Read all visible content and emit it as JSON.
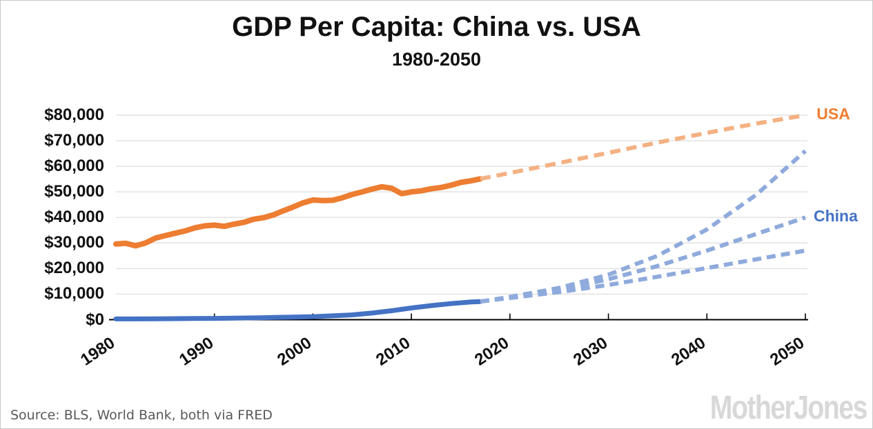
{
  "header": {},
  "footer": {
    "source": "Source: BLS, World Bank, both via FRED",
    "logo": "MotherJones"
  },
  "colors": {
    "usa_solid": "#ED7D31",
    "usa_dashed": "#F4B183",
    "china_solid": "#4472C4",
    "china_dashed": "#8FAADC",
    "gridline": "#E2E2E2",
    "axis": "#000000",
    "source_text": "#57585a",
    "logo_gray": "#d8d8d8"
  },
  "chart_data": {
    "type": "line",
    "title": "GDP Per Capita: China vs. USA",
    "subtitle": "1980-2050",
    "xlabel": "",
    "ylabel": "",
    "grid": "horizontal",
    "legend_position": "end-of-line labels",
    "x_axis": {
      "range": [
        1980,
        2050
      ],
      "ticks": [
        {
          "year": 1980,
          "label": "1980",
          "tick": false
        },
        {
          "year": 1990,
          "label": "1990",
          "tick": true
        },
        {
          "year": 2000,
          "label": "2000",
          "tick": true
        },
        {
          "year": 2010,
          "label": "2010",
          "tick": true
        },
        {
          "year": 2020,
          "label": "2020",
          "tick": true
        },
        {
          "year": 2030,
          "label": "2030",
          "tick": true
        },
        {
          "year": 2040,
          "label": "2040",
          "tick": true
        },
        {
          "year": 2050,
          "label": "2050",
          "tick": true
        }
      ]
    },
    "y_axis": {
      "range": [
        0,
        80000
      ],
      "ticks": [
        0,
        10000,
        20000,
        30000,
        40000,
        50000,
        60000,
        70000,
        80000
      ],
      "labels": [
        "$0",
        "$10,000",
        "$20,000",
        "$30,000",
        "$40,000",
        "$50,000",
        "$60,000",
        "$70,000",
        "$80,000"
      ]
    },
    "series": [
      {
        "name": "USA actual",
        "style": "solid",
        "color": "#ED7D31",
        "width": 8,
        "points": [
          [
            1980,
            29600
          ],
          [
            1981,
            29900
          ],
          [
            1982,
            28900
          ],
          [
            1983,
            30000
          ],
          [
            1984,
            31900
          ],
          [
            1985,
            32900
          ],
          [
            1986,
            33800
          ],
          [
            1987,
            34700
          ],
          [
            1988,
            35900
          ],
          [
            1989,
            36700
          ],
          [
            1990,
            37000
          ],
          [
            1991,
            36500
          ],
          [
            1992,
            37400
          ],
          [
            1993,
            38100
          ],
          [
            1994,
            39300
          ],
          [
            1995,
            39900
          ],
          [
            1996,
            41000
          ],
          [
            1997,
            42600
          ],
          [
            1998,
            44100
          ],
          [
            1999,
            45700
          ],
          [
            2000,
            46800
          ],
          [
            2001,
            46600
          ],
          [
            2002,
            46700
          ],
          [
            2003,
            47700
          ],
          [
            2004,
            49000
          ],
          [
            2005,
            50000
          ],
          [
            2006,
            51100
          ],
          [
            2007,
            52000
          ],
          [
            2008,
            51400
          ],
          [
            2009,
            49300
          ],
          [
            2010,
            50000
          ],
          [
            2011,
            50400
          ],
          [
            2012,
            51200
          ],
          [
            2013,
            51700
          ],
          [
            2014,
            52600
          ],
          [
            2015,
            53700
          ],
          [
            2016,
            54300
          ],
          [
            2017,
            55100
          ]
        ]
      },
      {
        "name": "USA projected",
        "style": "dashed",
        "color": "#F4B183",
        "width": 6,
        "dash": "15 9",
        "points": [
          [
            2017,
            55100
          ],
          [
            2020,
            57400
          ],
          [
            2025,
            61300
          ],
          [
            2030,
            65300
          ],
          [
            2035,
            69300
          ],
          [
            2040,
            73100
          ],
          [
            2045,
            76700
          ],
          [
            2050,
            80000
          ]
        ]
      },
      {
        "name": "China actual",
        "style": "solid",
        "color": "#4472C4",
        "width": 7,
        "points": [
          [
            1980,
            300
          ],
          [
            1982,
            300
          ],
          [
            1984,
            350
          ],
          [
            1986,
            400
          ],
          [
            1988,
            450
          ],
          [
            1990,
            500
          ],
          [
            1992,
            600
          ],
          [
            1994,
            700
          ],
          [
            1996,
            850
          ],
          [
            1998,
            1000
          ],
          [
            2000,
            1200
          ],
          [
            2002,
            1500
          ],
          [
            2004,
            1900
          ],
          [
            2006,
            2600
          ],
          [
            2008,
            3500
          ],
          [
            2010,
            4600
          ],
          [
            2012,
            5500
          ],
          [
            2014,
            6300
          ],
          [
            2016,
            6900
          ],
          [
            2017,
            7100
          ]
        ]
      },
      {
        "name": "China projected high",
        "style": "dashed",
        "color": "#8FAADC",
        "width": 6,
        "dash": "13 8",
        "points": [
          [
            2017,
            7100
          ],
          [
            2020,
            8900
          ],
          [
            2025,
            12400
          ],
          [
            2030,
            17600
          ],
          [
            2035,
            25000
          ],
          [
            2040,
            35300
          ],
          [
            2045,
            48800
          ],
          [
            2050,
            66000
          ]
        ]
      },
      {
        "name": "China projected mid",
        "style": "dashed",
        "color": "#8FAADC",
        "width": 6,
        "dash": "13 8",
        "points": [
          [
            2017,
            7100
          ],
          [
            2020,
            8700
          ],
          [
            2025,
            11700
          ],
          [
            2030,
            15800
          ],
          [
            2035,
            21000
          ],
          [
            2040,
            27000
          ],
          [
            2045,
            33500
          ],
          [
            2050,
            40000
          ]
        ]
      },
      {
        "name": "China projected low",
        "style": "dashed",
        "color": "#8FAADC",
        "width": 6,
        "dash": "13 8",
        "points": [
          [
            2017,
            7100
          ],
          [
            2020,
            8500
          ],
          [
            2025,
            10800
          ],
          [
            2030,
            13600
          ],
          [
            2035,
            16800
          ],
          [
            2040,
            20200
          ],
          [
            2045,
            23600
          ],
          [
            2050,
            27000
          ]
        ]
      }
    ],
    "annotations": [
      {
        "text": "USA",
        "color": "#ED7D31",
        "x": 2051,
        "y": 80500
      },
      {
        "text": "China",
        "color": "#4472C4",
        "x": 2050.7,
        "y": 40500
      }
    ]
  }
}
